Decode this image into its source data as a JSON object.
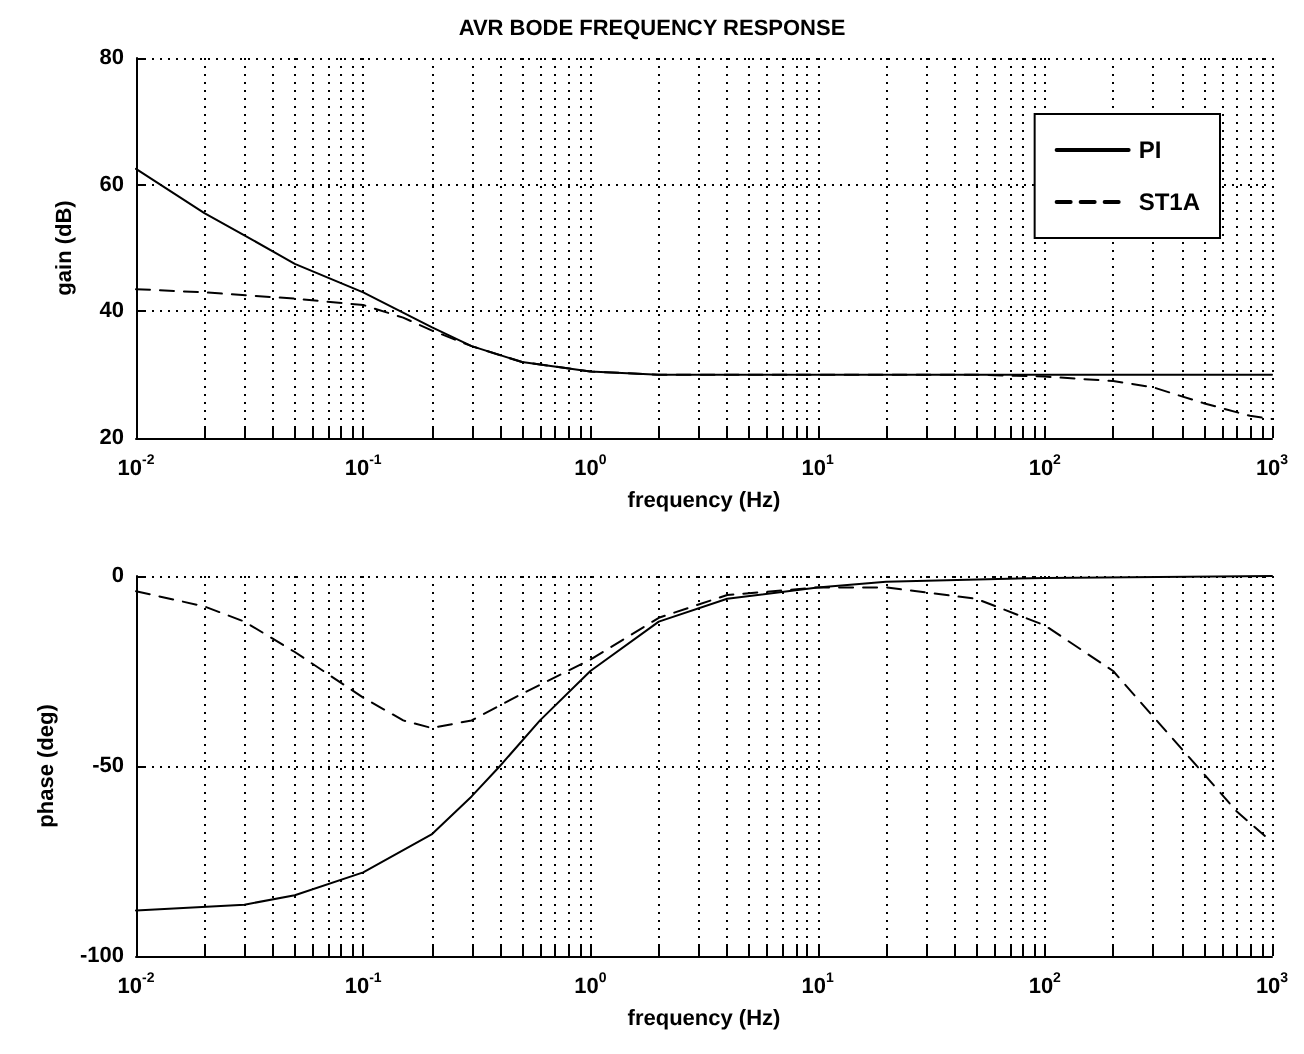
{
  "chart_data": [
    {
      "type": "line",
      "title": "AVR BODE FREQUENCY RESPONSE",
      "xlabel": "frequency (Hz)",
      "ylabel": "gain (dB)",
      "log": "x",
      "grid": true,
      "legend": "top right",
      "marker": "none",
      "xlim": [
        0.01,
        1000
      ],
      "ylim": [
        20,
        80
      ],
      "yticks": [
        20,
        40,
        60,
        80
      ],
      "xticks": [
        {
          "value": 0.01,
          "label": "10$^{-2}$"
        },
        {
          "value": 0.02,
          "label": null
        },
        {
          "value": 0.03,
          "label": null
        },
        {
          "value": 0.04,
          "label": null
        },
        {
          "value": 0.05,
          "label": null
        },
        {
          "value": 0.06,
          "label": null
        },
        {
          "value": 0.07,
          "label": null
        },
        {
          "value": 0.08,
          "label": null
        },
        {
          "value": 0.09,
          "label": null
        },
        {
          "value": 0.1,
          "label": "10$^{-1}$"
        },
        {
          "value": 0.2,
          "label": null
        },
        {
          "value": 0.3,
          "label": null
        },
        {
          "value": 0.4,
          "label": null
        },
        {
          "value": 0.5,
          "label": null
        },
        {
          "value": 0.6,
          "label": null
        },
        {
          "value": 0.7,
          "label": null
        },
        {
          "value": 0.8,
          "label": null
        },
        {
          "value": 0.9,
          "label": null
        },
        {
          "value": 1,
          "label": "10$^{0}$"
        },
        {
          "value": 2,
          "label": null
        },
        {
          "value": 3,
          "label": null
        },
        {
          "value": 4,
          "label": null
        },
        {
          "value": 5,
          "label": null
        },
        {
          "value": 6,
          "label": null
        },
        {
          "value": 7,
          "label": null
        },
        {
          "value": 8,
          "label": null
        },
        {
          "value": 9,
          "label": null
        },
        {
          "value": 10,
          "label": "10$^{1}$"
        },
        {
          "value": 20,
          "label": null
        },
        {
          "value": 30,
          "label": null
        },
        {
          "value": 40,
          "label": null
        },
        {
          "value": 50,
          "label": null
        },
        {
          "value": 60,
          "label": null
        },
        {
          "value": 70,
          "label": null
        },
        {
          "value": 80,
          "label": null
        },
        {
          "value": 90,
          "label": null
        },
        {
          "value": 100,
          "label": "10$^{2}$"
        },
        {
          "value": 200,
          "label": null
        },
        {
          "value": 300,
          "label": null
        },
        {
          "value": 400,
          "label": null
        },
        {
          "value": 500,
          "label": null
        },
        {
          "value": 600,
          "label": null
        },
        {
          "value": 700,
          "label": null
        },
        {
          "value": 800,
          "label": null
        },
        {
          "value": 900,
          "label": null
        },
        {
          "value": 1000,
          "label": "10$^{3}$"
        }
      ],
      "series": [
        {
          "name": "PI",
          "color": "#000000",
          "line_style": "solid",
          "x": [
            0.01,
            0.02,
            0.03,
            0.05,
            0.1,
            0.2,
            0.3,
            0.5,
            1,
            2,
            10,
            100,
            1000
          ],
          "values": [
            62.5,
            55.5,
            52,
            47.5,
            43,
            37.5,
            34.5,
            32,
            30.5,
            30,
            30,
            30,
            30
          ]
        },
        {
          "name": "ST1A",
          "color": "#000000",
          "line_style": "dashed",
          "x": [
            0.01,
            0.02,
            0.05,
            0.1,
            0.15,
            0.2,
            0.3,
            0.5,
            1,
            2,
            10,
            50,
            100,
            200,
            300,
            500,
            800,
            1000
          ],
          "values": [
            43.5,
            43,
            42,
            41,
            39,
            37,
            34.5,
            32,
            30.5,
            30,
            30,
            30,
            29.7,
            29,
            28,
            25.5,
            23.5,
            23
          ]
        }
      ]
    },
    {
      "type": "line",
      "xlabel": "frequency (Hz)",
      "ylabel": "phase (deg)",
      "log": "x",
      "grid": true,
      "marker": "none",
      "xlim": [
        0.01,
        1000
      ],
      "ylim": [
        -100,
        0
      ],
      "yticks": [
        -100,
        -50,
        0
      ],
      "xticks": [
        {
          "value": 0.01,
          "label": "10$^{-2}$"
        },
        {
          "value": 0.02,
          "label": null
        },
        {
          "value": 0.03,
          "label": null
        },
        {
          "value": 0.04,
          "label": null
        },
        {
          "value": 0.05,
          "label": null
        },
        {
          "value": 0.06,
          "label": null
        },
        {
          "value": 0.07,
          "label": null
        },
        {
          "value": 0.08,
          "label": null
        },
        {
          "value": 0.09,
          "label": null
        },
        {
          "value": 0.1,
          "label": "10$^{-1}$"
        },
        {
          "value": 0.2,
          "label": null
        },
        {
          "value": 0.3,
          "label": null
        },
        {
          "value": 0.4,
          "label": null
        },
        {
          "value": 0.5,
          "label": null
        },
        {
          "value": 0.6,
          "label": null
        },
        {
          "value": 0.7,
          "label": null
        },
        {
          "value": 0.8,
          "label": null
        },
        {
          "value": 0.9,
          "label": null
        },
        {
          "value": 1,
          "label": "10$^{0}$"
        },
        {
          "value": 2,
          "label": null
        },
        {
          "value": 3,
          "label": null
        },
        {
          "value": 4,
          "label": null
        },
        {
          "value": 5,
          "label": null
        },
        {
          "value": 6,
          "label": null
        },
        {
          "value": 7,
          "label": null
        },
        {
          "value": 8,
          "label": null
        },
        {
          "value": 9,
          "label": null
        },
        {
          "value": 10,
          "label": "10$^{1}$"
        },
        {
          "value": 20,
          "label": null
        },
        {
          "value": 30,
          "label": null
        },
        {
          "value": 40,
          "label": null
        },
        {
          "value": 50,
          "label": null
        },
        {
          "value": 60,
          "label": null
        },
        {
          "value": 70,
          "label": null
        },
        {
          "value": 80,
          "label": null
        },
        {
          "value": 90,
          "label": null
        },
        {
          "value": 100,
          "label": "10$^{2}$"
        },
        {
          "value": 200,
          "label": null
        },
        {
          "value": 300,
          "label": null
        },
        {
          "value": 400,
          "label": null
        },
        {
          "value": 500,
          "label": null
        },
        {
          "value": 600,
          "label": null
        },
        {
          "value": 700,
          "label": null
        },
        {
          "value": 800,
          "label": null
        },
        {
          "value": 900,
          "label": null
        },
        {
          "value": 1000,
          "label": "10$^{3}$"
        }
      ],
      "series": [
        {
          "color": "#000000",
          "line_style": "solid",
          "x": [
            0.01,
            0.03,
            0.05,
            0.1,
            0.2,
            0.3,
            0.4,
            0.6,
            1,
            2,
            4,
            10,
            20,
            100,
            1000
          ],
          "values": [
            -88,
            -86.5,
            -84,
            -78,
            -68,
            -58,
            -50,
            -38,
            -25,
            -12,
            -6,
            -3,
            -1.5,
            -0.5,
            0
          ]
        },
        {
          "color": "#000000",
          "line_style": "dashed",
          "x": [
            0.01,
            0.02,
            0.03,
            0.05,
            0.1,
            0.15,
            0.2,
            0.3,
            0.5,
            1,
            2,
            4,
            10,
            20,
            50,
            100,
            200,
            300,
            500,
            700,
            1000
          ],
          "values": [
            -4,
            -8,
            -12,
            -20,
            -32,
            -38,
            -40,
            -38,
            -31,
            -22,
            -11,
            -5,
            -3,
            -3,
            -6,
            -13,
            -25,
            -37,
            -52,
            -62,
            -70
          ]
        }
      ]
    }
  ]
}
